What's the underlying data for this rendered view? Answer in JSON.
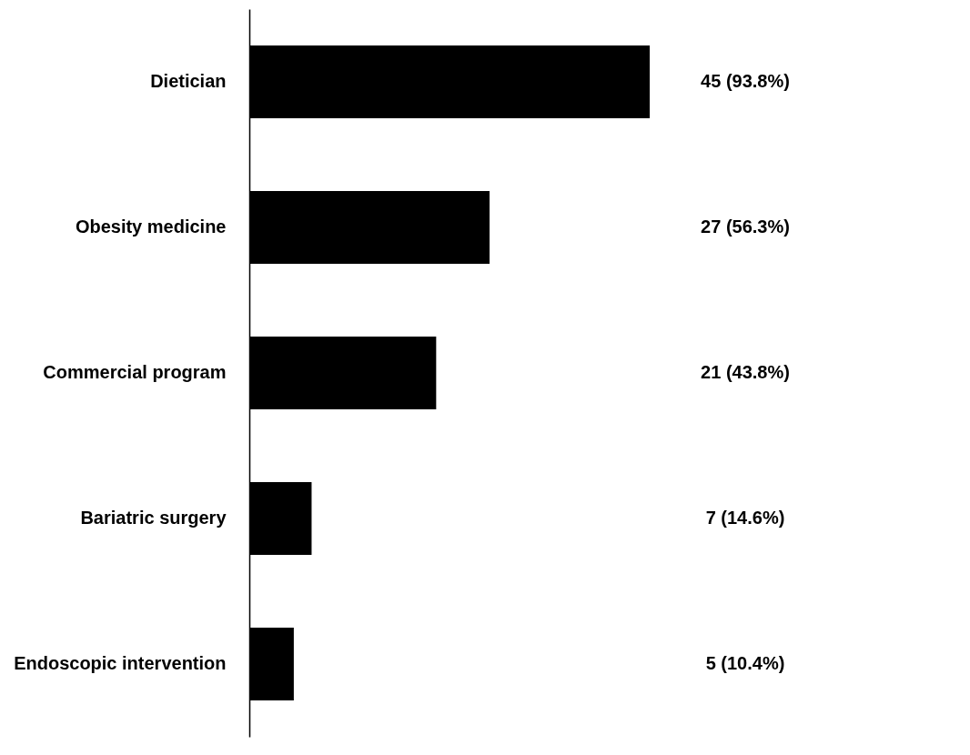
{
  "chart_data": {
    "type": "bar",
    "orientation": "horizontal",
    "categories": [
      "Dietician",
      "Obesity medicine",
      "Commercial program",
      "Bariatric surgery",
      "Endoscopic intervention"
    ],
    "values": [
      45,
      27,
      21,
      7,
      5
    ],
    "value_labels": [
      "45 (93.8%)",
      "27 (56.3%)",
      "21 (43.8%)",
      "7 (14.6%)",
      "5 (10.4%)"
    ],
    "color": "#000000",
    "tick_labels": "y",
    "grid": false
  }
}
